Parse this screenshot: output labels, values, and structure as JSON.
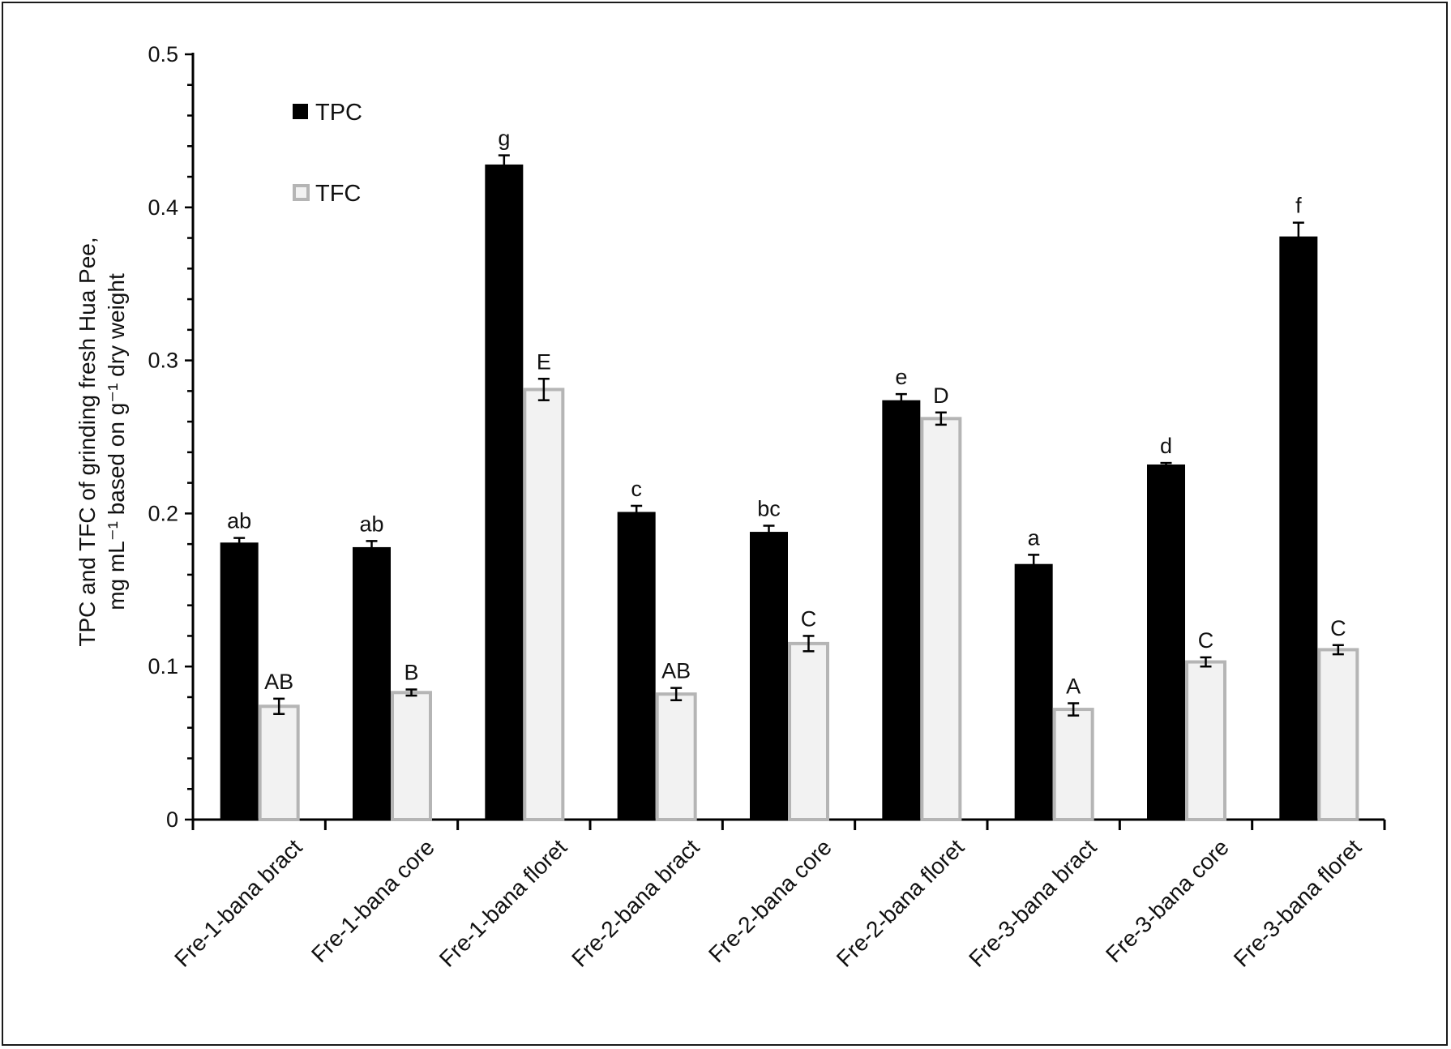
{
  "chart_data": {
    "type": "bar",
    "title": "",
    "xlabel": "",
    "ylabel_lines": [
      "TPC and TFC of grinding fresh Hua Pee,",
      "mg mL⁻¹ based on g⁻¹ dry weight"
    ],
    "ylim": [
      0,
      0.5
    ],
    "yticks": [
      0,
      0.1,
      0.2,
      0.3,
      0.4,
      0.5
    ],
    "ytick_labels": [
      "0",
      "0.1",
      "0.2",
      "0.3",
      "0.4",
      "0.5"
    ],
    "categories": [
      "Fre-1-bana bract",
      "Fre-1-bana core",
      "Fre-1-bana floret",
      "Fre-2-bana bract",
      "Fre-2-bana core",
      "Fre-2-bana floret",
      "Fre-3-bana bract",
      "Fre-3-bana core",
      "Fre-3-bana floret"
    ],
    "legend_position": "top-left",
    "grid": false,
    "series": [
      {
        "name": "TPC",
        "color": "#000000",
        "values": [
          0.181,
          0.178,
          0.428,
          0.201,
          0.188,
          0.274,
          0.167,
          0.232,
          0.381
        ],
        "errors": [
          0.003,
          0.004,
          0.006,
          0.004,
          0.004,
          0.004,
          0.006,
          0.001,
          0.009
        ],
        "labels": [
          "ab",
          "ab",
          "g",
          "c",
          "bc",
          "e",
          "a",
          "d",
          "f"
        ]
      },
      {
        "name": "TFC",
        "color": "#f2f2f2",
        "edge_color": "#b5b5b5",
        "values": [
          0.074,
          0.083,
          0.281,
          0.082,
          0.115,
          0.262,
          0.072,
          0.103,
          0.111
        ],
        "errors": [
          0.005,
          0.002,
          0.007,
          0.004,
          0.005,
          0.004,
          0.004,
          0.003,
          0.003
        ],
        "labels": [
          "AB",
          "B",
          "E",
          "AB",
          "C",
          "D",
          "A",
          "C",
          "C"
        ]
      }
    ]
  }
}
